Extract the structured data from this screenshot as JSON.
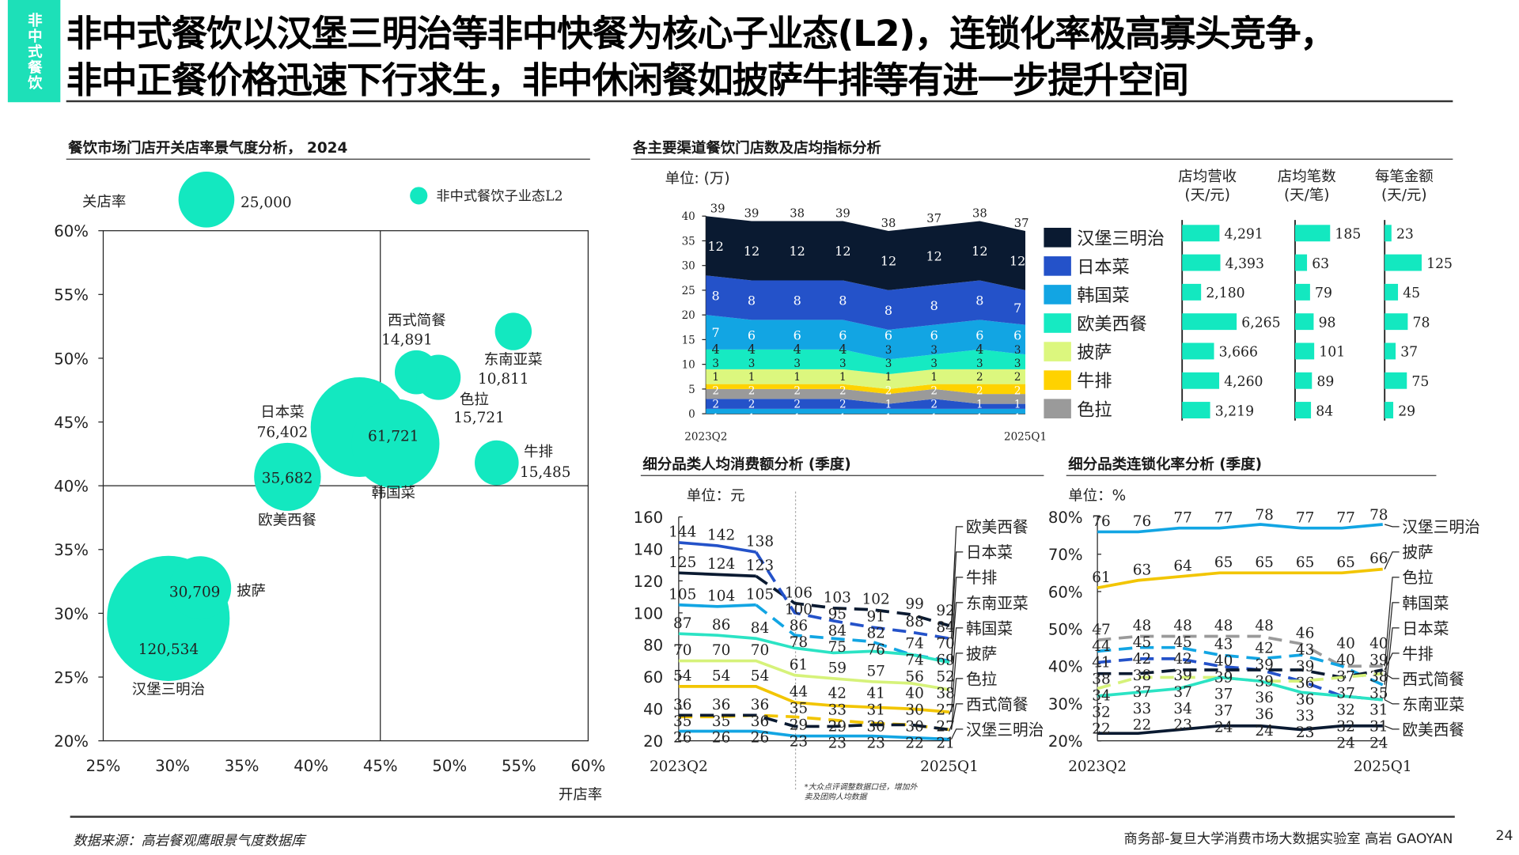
{
  "header": {
    "side_tag": "非中式餐饮",
    "title_line1": "非中式餐饮以汉堡三明治等非中快餐为核心子业态(L2)，连锁化率极高寡头竞争，",
    "title_line2": "非中正餐价格迅速下行求生，非中休闲餐如披萨牛排等有进一步提升空间"
  },
  "footer": {
    "source": "数据来源：高岩餐观鹰眼景气度数据库",
    "credit": "商务部-复旦大学消费市场大数据实验室  高岩 GAOYAN",
    "page": "24"
  },
  "chart_data": [
    {
      "type": "scatter",
      "variant": "bubble",
      "title": "餐饮市场门店开关店率景气度分析， 2024",
      "xlabel": "开店率",
      "ylabel": "关店率",
      "xlim": [
        25,
        60
      ],
      "ylim": [
        20,
        60
      ],
      "x_ticks": [
        "25%",
        "30%",
        "35%",
        "40%",
        "45%",
        "50%",
        "55%",
        "60%"
      ],
      "y_ticks": [
        "20%",
        "25%",
        "30%",
        "35%",
        "40%",
        "45%",
        "50%",
        "55%",
        "60%"
      ],
      "quadrant_lines": {
        "x": 45,
        "y": 40
      },
      "legend": {
        "label": "非中式餐饮子业态L2",
        "position": "top-right"
      },
      "size_reference": {
        "value": "25,000",
        "size": 25000
      },
      "bubble_color": "#13e8c0",
      "points": [
        {
          "name": "汉堡三明治",
          "x": 29.7,
          "y": 29.6,
          "size": 120534,
          "label": "120,534"
        },
        {
          "name": "披萨",
          "x": 32.0,
          "y": 32.0,
          "size": 30709,
          "label": "30,709"
        },
        {
          "name": "欧美西餐",
          "x": 38.3,
          "y": 40.7,
          "size": 35682,
          "label": "35,682"
        },
        {
          "name": "日本菜",
          "x": 43.5,
          "y": 44.6,
          "size": 76402,
          "label": "76,402"
        },
        {
          "name": "韩国菜",
          "x": 46.1,
          "y": 43.3,
          "size": 61721,
          "label": "61,721"
        },
        {
          "name": "西式简餐",
          "x": 47.6,
          "y": 48.9,
          "size": 14891,
          "label": "14,891"
        },
        {
          "name": "色拉",
          "x": 49.2,
          "y": 48.5,
          "size": 15721,
          "label": "15,721"
        },
        {
          "name": "东南亚菜",
          "x": 54.6,
          "y": 52.1,
          "size": 10811,
          "label": "10,811"
        },
        {
          "name": "牛排",
          "x": 53.4,
          "y": 41.8,
          "size": 15485,
          "label": "15,485"
        }
      ]
    },
    {
      "type": "area",
      "stacked": true,
      "title": "各主要渠道餐饮门店数及店均指标分析",
      "unit": "单位: (万)",
      "ylim": [
        0,
        40
      ],
      "y_ticks": [
        "0",
        "5",
        "10",
        "15",
        "20",
        "25",
        "30",
        "35",
        "40"
      ],
      "x_labels": [
        "2023Q2",
        "2025Q1"
      ],
      "totals": [
        39,
        39,
        38,
        39,
        38,
        37,
        38,
        37
      ],
      "series": [
        {
          "values": [
            1,
            1,
            1,
            1,
            1,
            1,
            1,
            1
          ],
          "color": "#12a5e3"
        },
        {
          "values": [
            2,
            2,
            2,
            2,
            1,
            2,
            1,
            1
          ],
          "color": "#2452c9"
        },
        {
          "name": "色拉",
          "values": [
            2,
            2,
            2,
            2,
            2,
            2,
            2,
            2
          ],
          "color": "#9a9a9a"
        },
        {
          "name": "牛排",
          "values": [
            1,
            1,
            1,
            1,
            1,
            1,
            2,
            2
          ],
          "color": "#ffd200"
        },
        {
          "name": "披萨",
          "values": [
            3,
            3,
            3,
            3,
            3,
            3,
            3,
            3
          ],
          "color": "#dcf77e"
        },
        {
          "name": "欧美西餐",
          "values": [
            4,
            4,
            4,
            4,
            3,
            3,
            4,
            3
          ],
          "color": "#16eac2"
        },
        {
          "name": "韩国菜",
          "values": [
            7,
            6,
            6,
            6,
            6,
            6,
            6,
            6
          ],
          "color": "#12a5e3"
        },
        {
          "name": "日本菜",
          "values": [
            8,
            8,
            8,
            8,
            8,
            8,
            8,
            7
          ],
          "color": "#2452c9"
        },
        {
          "name": "汉堡三明治",
          "values": [
            12,
            12,
            12,
            12,
            12,
            12,
            12,
            12
          ],
          "color": "#0a1a31"
        }
      ],
      "legend": [
        "汉堡三明治",
        "日本菜",
        "韩国菜",
        "欧美西餐",
        "披萨",
        "牛排",
        "色拉"
      ]
    },
    {
      "type": "bar",
      "orientation": "horizontal",
      "categories": [
        "汉堡三明治",
        "日本菜",
        "韩国菜",
        "欧美西餐",
        "披萨",
        "牛排",
        "色拉"
      ],
      "bar_color": "#13e8c0",
      "columns": [
        {
          "header1": "店均营收",
          "header2": "(天/元)",
          "values": [
            4291,
            4393,
            2180,
            6265,
            3666,
            4260,
            3219
          ],
          "labels": [
            "4,291",
            "4,393",
            "2,180",
            "6,265",
            "3,666",
            "4,260",
            "3,219"
          ]
        },
        {
          "header1": "店均笔数",
          "header2": "(天/笔)",
          "values": [
            185,
            63,
            79,
            98,
            101,
            89,
            84
          ],
          "labels": [
            "185",
            "63",
            "79",
            "98",
            "101",
            "89",
            "84"
          ]
        },
        {
          "header1": "每笔金额",
          "header2": "(天/元)",
          "values": [
            23,
            125,
            45,
            78,
            37,
            75,
            29
          ],
          "labels": [
            "23",
            "125",
            "45",
            "78",
            "37",
            "75",
            "29"
          ]
        }
      ]
    },
    {
      "type": "line",
      "title": "细分品类人均消费额分析 (季度)",
      "unit": "单位：元",
      "ylim": [
        20,
        160
      ],
      "y_ticks": [
        "20",
        "40",
        "60",
        "80",
        "100",
        "120",
        "140",
        "160"
      ],
      "x_labels": [
        "2023Q2",
        "2025Q1"
      ],
      "footnote": "*大众点评调整数据口径，增加外卖及团购人均数据",
      "series": [
        {
          "name": "欧美西餐",
          "values": [
            125,
            124,
            123,
            106,
            103,
            102,
            99,
            92
          ],
          "color": "#0a1a31",
          "style": "solid-then-dashed"
        },
        {
          "name": "日本菜",
          "values": [
            144,
            142,
            138,
            100,
            95,
            91,
            88,
            84
          ],
          "color": "#2452c9",
          "style": "solid-then-dashed"
        },
        {
          "name": "牛排",
          "values": [
            105,
            104,
            105,
            86,
            84,
            82,
            74,
            70
          ],
          "color": "#12a5e3",
          "style": "solid-then-dashed"
        },
        {
          "name": "东南亚菜",
          "values": [
            87,
            86,
            84,
            78,
            75,
            76,
            74,
            69
          ],
          "color": "#2be3c4",
          "style": "solid"
        },
        {
          "name": "韩国菜",
          "values": [
            70,
            70,
            70,
            61,
            59,
            57,
            56,
            52
          ],
          "color": "#d6f27a",
          "style": "solid"
        },
        {
          "name": "披萨",
          "values": [
            54,
            54,
            54,
            44,
            42,
            41,
            40,
            38
          ],
          "color": "#f2c500",
          "style": "solid"
        },
        {
          "name": "色拉",
          "values": [
            35,
            35,
            36,
            35,
            33,
            31,
            30,
            27
          ],
          "color": "#f2c500",
          "style": "dashed"
        },
        {
          "name": "西式简餐",
          "values": [
            36,
            36,
            36,
            29,
            29,
            30,
            30,
            27
          ],
          "color": "#0a1a31",
          "style": "dashed"
        },
        {
          "name": "汉堡三明治",
          "values": [
            26,
            26,
            26,
            23,
            23,
            23,
            22,
            21
          ],
          "color": "#12a5e3",
          "style": "solid"
        }
      ]
    },
    {
      "type": "line",
      "title": "细分品类连锁化率分析 (季度)",
      "unit": "单位：%",
      "ylim": [
        20,
        80
      ],
      "y_ticks": [
        "20%",
        "30%",
        "40%",
        "50%",
        "60%",
        "70%",
        "80%"
      ],
      "x_labels": [
        "2023Q2",
        "2025Q1"
      ],
      "series": [
        {
          "name": "汉堡三明治",
          "values": [
            76,
            76,
            77,
            77,
            78,
            77,
            77,
            78
          ],
          "color": "#12a5e3",
          "style": "solid"
        },
        {
          "name": "披萨",
          "values": [
            61,
            63,
            64,
            65,
            65,
            65,
            65,
            66
          ],
          "color": "#f2c500",
          "style": "solid"
        },
        {
          "name": "色拉",
          "values": [
            47,
            48,
            48,
            48,
            48,
            46,
            40,
            40
          ],
          "color": "#9a9a9a",
          "style": "dashed"
        },
        {
          "name": "韩国菜",
          "values": [
            44,
            45,
            45,
            43,
            42,
            43,
            40,
            35
          ],
          "color": "#12a5e3",
          "style": "dashed"
        },
        {
          "name": "日本菜",
          "values": [
            41,
            42,
            42,
            40,
            39,
            36,
            32,
            31
          ],
          "color": "#2452c9",
          "style": "dashed"
        },
        {
          "name": "牛排",
          "values": [
            38,
            38,
            39,
            39,
            39,
            39,
            37,
            39
          ],
          "color": "#0a1a31",
          "style": "dashed"
        },
        {
          "name": "西式简餐",
          "values": [
            34,
            37,
            37,
            37,
            36,
            36,
            37,
            38
          ],
          "color": "#d6f27a",
          "style": "dashed"
        },
        {
          "name": "东南亚菜",
          "values": [
            32,
            33,
            34,
            37,
            36,
            33,
            32,
            31
          ],
          "color": "#2be3c4",
          "style": "solid"
        },
        {
          "name": "欧美西餐",
          "values": [
            22,
            22,
            23,
            24,
            24,
            23,
            24,
            24
          ],
          "color": "#0a1a31",
          "style": "solid"
        }
      ]
    }
  ]
}
